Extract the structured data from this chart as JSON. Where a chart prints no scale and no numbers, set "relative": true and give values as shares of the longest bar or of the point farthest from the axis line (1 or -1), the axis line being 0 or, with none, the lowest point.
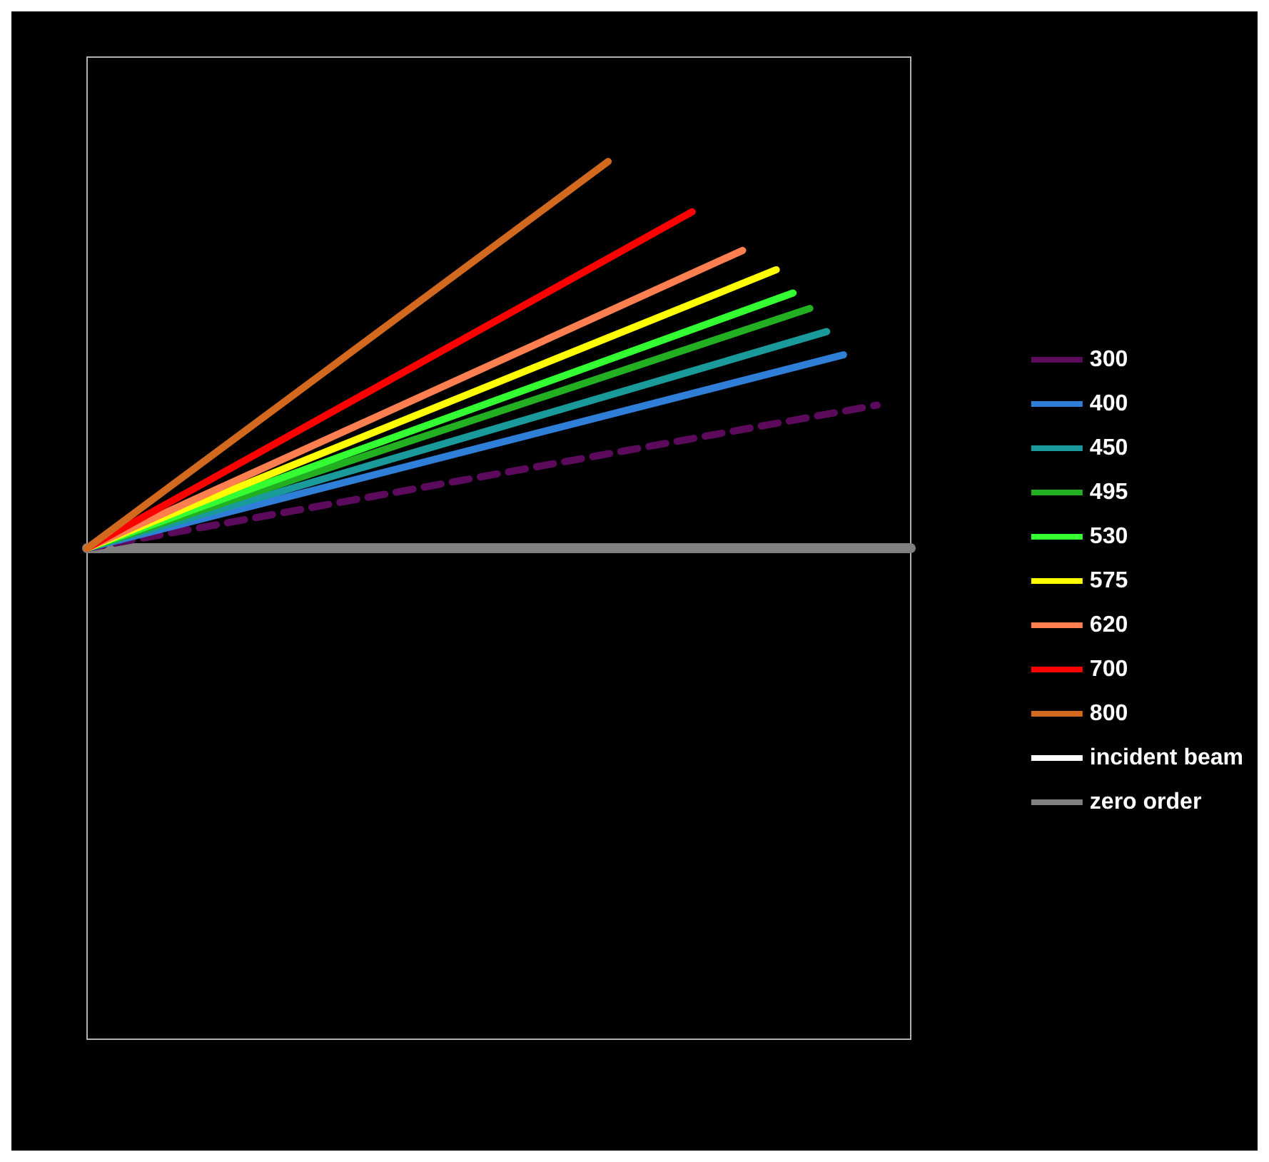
{
  "chart_data": {
    "type": "line",
    "relative": true,
    "grid": false,
    "legend": "right",
    "marker": "none",
    "categories": [
      null,
      null,
      null,
      null,
      null,
      null,
      null,
      null,
      null,
      null,
      null,
      null,
      null,
      null,
      null,
      null,
      null,
      null,
      null,
      null,
      null,
      null,
      null,
      null,
      null,
      null,
      null,
      null,
      null,
      null,
      null,
      null,
      null,
      null,
      null,
      null,
      null,
      null,
      null,
      null,
      null,
      null,
      null,
      null,
      null,
      null,
      null,
      null,
      null,
      null
    ],
    "series": [
      {
        "name": "300",
        "color": "#5c0a5c",
        "line_style": "dashed",
        "values": [
          0,
          null,
          null,
          null,
          null,
          null,
          null,
          null,
          null,
          null,
          null,
          null,
          null,
          null,
          null,
          null,
          null,
          null,
          null,
          null,
          null,
          null,
          null,
          null,
          null,
          null,
          null,
          null,
          null,
          null,
          null,
          null,
          null,
          null,
          null,
          null,
          null,
          null,
          null,
          null,
          null,
          null,
          null,
          null,
          null,
          null,
          null,
          0.37,
          null,
          null
        ]
      },
      {
        "name": "400",
        "color": "#2f7fd8",
        "values": [
          0,
          null,
          null,
          null,
          null,
          null,
          null,
          null,
          null,
          null,
          null,
          null,
          null,
          null,
          null,
          null,
          null,
          null,
          null,
          null,
          null,
          null,
          null,
          null,
          null,
          null,
          null,
          null,
          null,
          null,
          null,
          null,
          null,
          null,
          null,
          null,
          null,
          null,
          null,
          null,
          null,
          null,
          null,
          null,
          null,
          0.5,
          null,
          null,
          null,
          null
        ]
      },
      {
        "name": "450",
        "color": "#1a9a9a",
        "values": [
          0,
          null,
          null,
          null,
          null,
          null,
          null,
          null,
          null,
          null,
          null,
          null,
          null,
          null,
          null,
          null,
          null,
          null,
          null,
          null,
          null,
          null,
          null,
          null,
          null,
          null,
          null,
          null,
          null,
          null,
          null,
          null,
          null,
          null,
          null,
          null,
          null,
          null,
          null,
          null,
          null,
          null,
          null,
          null,
          0.56,
          null,
          null,
          null,
          null,
          null
        ]
      },
      {
        "name": "495",
        "color": "#22b022",
        "values": [
          0,
          null,
          null,
          null,
          null,
          null,
          null,
          null,
          null,
          null,
          null,
          null,
          null,
          null,
          null,
          null,
          null,
          null,
          null,
          null,
          null,
          null,
          null,
          null,
          null,
          null,
          null,
          null,
          null,
          null,
          null,
          null,
          null,
          null,
          null,
          null,
          null,
          null,
          null,
          null,
          null,
          null,
          null,
          0.62,
          null,
          null,
          null,
          null,
          null,
          null
        ]
      },
      {
        "name": "530",
        "color": "#33ff33",
        "values": [
          0,
          null,
          null,
          null,
          null,
          null,
          null,
          null,
          null,
          null,
          null,
          null,
          null,
          null,
          null,
          null,
          null,
          null,
          null,
          null,
          null,
          null,
          null,
          null,
          null,
          null,
          null,
          null,
          null,
          null,
          null,
          null,
          null,
          null,
          null,
          null,
          null,
          null,
          null,
          null,
          null,
          null,
          0.66,
          null,
          null,
          null,
          null,
          null,
          null,
          null
        ]
      },
      {
        "name": "575",
        "color": "#ffff00",
        "values": [
          0,
          null,
          null,
          null,
          null,
          null,
          null,
          null,
          null,
          null,
          null,
          null,
          null,
          null,
          null,
          null,
          null,
          null,
          null,
          null,
          null,
          null,
          null,
          null,
          null,
          null,
          null,
          null,
          null,
          null,
          null,
          null,
          null,
          null,
          null,
          null,
          null,
          null,
          null,
          null,
          null,
          0.72,
          null,
          null,
          null,
          null,
          null,
          null,
          null,
          null
        ]
      },
      {
        "name": "620",
        "color": "#ff7f50",
        "values": [
          0,
          null,
          null,
          null,
          null,
          null,
          null,
          null,
          null,
          null,
          null,
          null,
          null,
          null,
          null,
          null,
          null,
          null,
          null,
          null,
          null,
          null,
          null,
          null,
          null,
          null,
          null,
          null,
          null,
          null,
          null,
          null,
          null,
          null,
          null,
          null,
          null,
          null,
          null,
          0.77,
          null,
          null,
          null,
          null,
          null,
          null,
          null,
          null,
          null,
          null
        ]
      },
      {
        "name": "700",
        "color": "#ff0000",
        "values": [
          0,
          null,
          null,
          null,
          null,
          null,
          null,
          null,
          null,
          null,
          null,
          null,
          null,
          null,
          null,
          null,
          null,
          null,
          null,
          null,
          null,
          null,
          null,
          null,
          null,
          null,
          null,
          null,
          null,
          null,
          null,
          null,
          null,
          null,
          null,
          null,
          0.87,
          null,
          null,
          null,
          null,
          null,
          null,
          null,
          null,
          null,
          null,
          null,
          null,
          null
        ]
      },
      {
        "name": "800",
        "color": "#d2691e",
        "values": [
          0,
          null,
          null,
          null,
          null,
          null,
          null,
          null,
          null,
          null,
          null,
          null,
          null,
          null,
          null,
          null,
          null,
          null,
          null,
          null,
          null,
          null,
          null,
          null,
          null,
          null,
          null,
          null,
          null,
          null,
          null,
          1,
          null,
          null,
          null,
          null,
          null,
          null,
          null,
          null,
          null,
          null,
          null,
          null,
          null,
          null,
          null,
          null,
          null,
          null
        ]
      },
      {
        "name": "incident beam",
        "color": "#ffffff",
        "values": [
          null,
          null,
          null,
          null,
          null,
          null,
          null,
          null,
          null,
          null,
          null,
          null,
          null,
          null,
          null,
          null,
          null,
          null,
          null,
          null,
          null,
          null,
          null,
          null,
          null,
          null,
          null,
          null,
          null,
          null,
          null,
          null,
          null,
          null,
          null,
          null,
          null,
          null,
          null,
          null,
          null,
          null,
          null,
          null,
          null,
          null,
          null,
          null,
          null,
          null
        ]
      },
      {
        "name": "zero order",
        "color": "#808080",
        "values": [
          0,
          null,
          null,
          null,
          null,
          null,
          null,
          null,
          null,
          null,
          null,
          null,
          null,
          null,
          null,
          null,
          null,
          null,
          null,
          null,
          null,
          null,
          null,
          null,
          null,
          null,
          null,
          null,
          null,
          null,
          null,
          null,
          null,
          null,
          null,
          null,
          null,
          null,
          null,
          null,
          null,
          null,
          null,
          null,
          null,
          null,
          null,
          null,
          null,
          0
        ]
      }
    ]
  }
}
